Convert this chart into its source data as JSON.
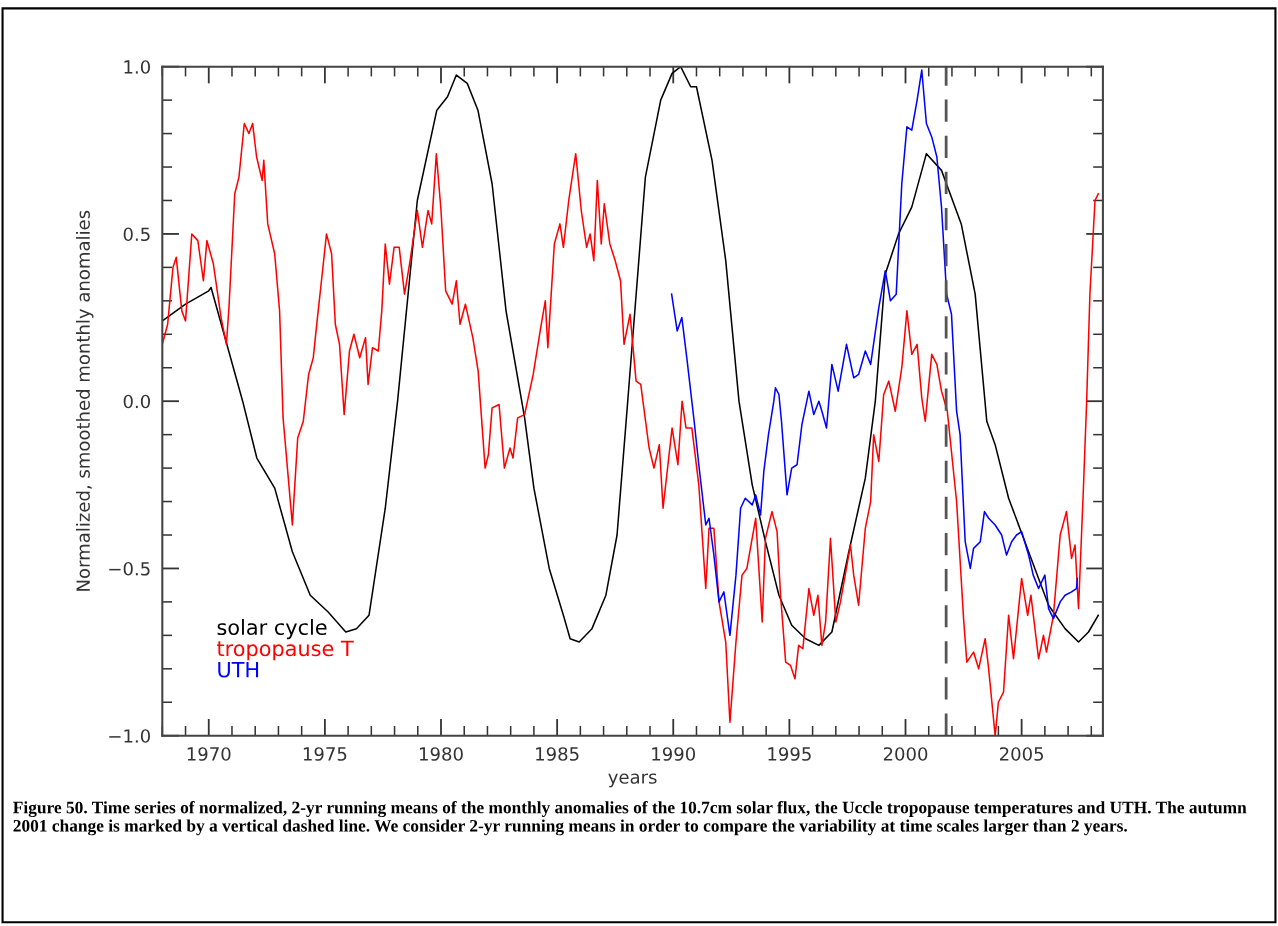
{
  "chart_data": {
    "type": "line",
    "xlabel": "years",
    "ylabel": "Normalized, smoothed monthly anomalies",
    "xlim": [
      1968,
      2008.5
    ],
    "ylim": [
      -1.0,
      1.0
    ],
    "xticks": [
      1970,
      1975,
      1980,
      1985,
      1990,
      1995,
      2000,
      2005
    ],
    "yticks": [
      {
        "value": -1.0,
        "label": "−1.0"
      },
      {
        "value": -0.5,
        "label": "−0.5"
      },
      {
        "value": 0.0,
        "label": "0.0"
      },
      {
        "value": 0.5,
        "label": "0.5"
      },
      {
        "value": 1.0,
        "label": "1.0"
      }
    ],
    "grid": false,
    "legend": "bottom left",
    "marker": "none",
    "line_style": "solid",
    "series": [
      {
        "name": "solar cycle",
        "color": "#000000",
        "x": [
          1968.0,
          1969.0,
          1970.0,
          1970.1,
          1971.46,
          1972.07,
          1972.84,
          1973.6,
          1974.37,
          1975.14,
          1975.9,
          1976.36,
          1976.9,
          1977.6,
          1978.13,
          1978.98,
          1979.82,
          1980.28,
          1980.66,
          1981.13,
          1981.59,
          1982.2,
          1982.8,
          1983.6,
          1984.0,
          1984.66,
          1985.27,
          1985.56,
          1985.95,
          1986.5,
          1987.1,
          1987.58,
          1988.04,
          1988.8,
          1989.46,
          1989.95,
          1990.32,
          1990.75,
          1991.0,
          1991.67,
          1992.26,
          1992.83,
          1993.4,
          1993.97,
          1994.55,
          1995.1,
          1995.7,
          1996.27,
          1996.83,
          1997.56,
          1998.27,
          1998.7,
          1999.13,
          1999.7,
          2000.27,
          2000.9,
          2001.55,
          2002.4,
          2003.0,
          2003.5,
          2003.86,
          2004.44,
          2005.3,
          2006.16,
          2006.87,
          2007.45,
          2007.88,
          2008.3
        ],
        "values": [
          0.24,
          0.29,
          0.33,
          0.34,
          0.0,
          -0.17,
          -0.26,
          -0.45,
          -0.58,
          -0.63,
          -0.69,
          -0.68,
          -0.64,
          -0.32,
          0.0,
          0.6,
          0.87,
          0.91,
          0.975,
          0.95,
          0.87,
          0.65,
          0.27,
          -0.05,
          -0.26,
          -0.5,
          -0.64,
          -0.71,
          -0.72,
          -0.68,
          -0.58,
          -0.4,
          0.0,
          0.67,
          0.9,
          0.98,
          1.0,
          0.94,
          0.94,
          0.72,
          0.42,
          0.0,
          -0.25,
          -0.42,
          -0.58,
          -0.67,
          -0.71,
          -0.73,
          -0.69,
          -0.45,
          -0.23,
          0.0,
          0.38,
          0.5,
          0.58,
          0.74,
          0.69,
          0.53,
          0.32,
          -0.06,
          -0.13,
          -0.29,
          -0.45,
          -0.61,
          -0.68,
          -0.72,
          -0.69,
          -0.64
        ]
      },
      {
        "name": "tropopause T",
        "color": "#ff0000",
        "x": [
          1968.0,
          1968.23,
          1968.46,
          1968.6,
          1968.84,
          1969.0,
          1969.27,
          1969.53,
          1969.77,
          1969.92,
          1970.2,
          1970.53,
          1970.76,
          1970.87,
          1971.12,
          1971.3,
          1971.53,
          1971.73,
          1971.89,
          1972.06,
          1972.3,
          1972.37,
          1972.54,
          1972.84,
          1973.05,
          1973.2,
          1973.6,
          1973.83,
          1974.07,
          1974.3,
          1974.5,
          1974.68,
          1974.9,
          1975.07,
          1975.29,
          1975.45,
          1975.63,
          1975.83,
          1976.06,
          1976.25,
          1976.5,
          1976.75,
          1976.86,
          1977.05,
          1977.3,
          1977.45,
          1977.6,
          1977.78,
          1977.98,
          1978.2,
          1978.43,
          1978.67,
          1978.98,
          1979.2,
          1979.44,
          1979.6,
          1979.8,
          1980.0,
          1980.2,
          1980.48,
          1980.66,
          1980.82,
          1981.05,
          1981.37,
          1981.6,
          1981.9,
          1982.04,
          1982.2,
          1982.5,
          1982.73,
          1982.97,
          1983.1,
          1983.3,
          1983.6,
          1983.97,
          1984.27,
          1984.49,
          1984.6,
          1984.88,
          1985.12,
          1985.27,
          1985.5,
          1985.8,
          1986.04,
          1986.27,
          1986.42,
          1986.58,
          1986.73,
          1986.9,
          1987.03,
          1987.27,
          1987.5,
          1987.73,
          1987.88,
          1988.14,
          1988.4,
          1988.6,
          1988.96,
          1989.17,
          1989.4,
          1989.56,
          1989.95,
          1990.2,
          1990.38,
          1990.55,
          1990.8,
          1991.1,
          1991.4,
          1991.54,
          1991.75,
          1991.97,
          1992.26,
          1992.44,
          1992.7,
          1992.96,
          1993.17,
          1993.55,
          1993.83,
          1993.97,
          1994.25,
          1994.47,
          1994.62,
          1994.84,
          1995.05,
          1995.24,
          1995.4,
          1995.58,
          1995.84,
          1996.05,
          1996.23,
          1996.4,
          1996.56,
          1996.77,
          1997.0,
          1997.2,
          1997.63,
          1997.77,
          1997.98,
          1998.27,
          1998.5,
          1998.63,
          1998.85,
          1999.06,
          1999.28,
          1999.56,
          1999.84,
          2000.06,
          2000.27,
          2000.5,
          2000.7,
          2000.85,
          2001.13,
          2001.35,
          2001.55,
          2001.8,
          2002.2,
          2002.5,
          2002.64,
          2002.93,
          2003.15,
          2003.43,
          2003.58,
          2003.86,
          2004.0,
          2004.22,
          2004.44,
          2004.65,
          2005.0,
          2005.26,
          2005.4,
          2005.73,
          2005.94,
          2006.07,
          2006.37,
          2006.66,
          2006.93,
          2007.15,
          2007.3,
          2007.45,
          2007.66,
          2007.8,
          2007.94,
          2008.16,
          2008.3
        ],
        "values": [
          0.17,
          0.23,
          0.4,
          0.43,
          0.27,
          0.24,
          0.5,
          0.48,
          0.36,
          0.48,
          0.41,
          0.25,
          0.17,
          0.28,
          0.62,
          0.67,
          0.83,
          0.8,
          0.83,
          0.73,
          0.66,
          0.72,
          0.53,
          0.44,
          0.27,
          -0.05,
          -0.37,
          -0.11,
          -0.06,
          0.08,
          0.13,
          0.25,
          0.39,
          0.5,
          0.44,
          0.23,
          0.17,
          -0.04,
          0.15,
          0.2,
          0.13,
          0.19,
          0.05,
          0.16,
          0.15,
          0.27,
          0.47,
          0.35,
          0.46,
          0.46,
          0.32,
          0.42,
          0.57,
          0.46,
          0.57,
          0.53,
          0.74,
          0.57,
          0.33,
          0.29,
          0.36,
          0.23,
          0.29,
          0.19,
          0.09,
          -0.2,
          -0.16,
          -0.02,
          -0.01,
          -0.2,
          -0.14,
          -0.17,
          -0.05,
          -0.04,
          0.08,
          0.21,
          0.3,
          0.16,
          0.47,
          0.53,
          0.46,
          0.6,
          0.74,
          0.57,
          0.46,
          0.5,
          0.42,
          0.66,
          0.47,
          0.59,
          0.47,
          0.42,
          0.36,
          0.17,
          0.26,
          0.06,
          0.05,
          -0.14,
          -0.2,
          -0.13,
          -0.32,
          -0.08,
          -0.19,
          0.0,
          -0.08,
          -0.08,
          -0.25,
          -0.56,
          -0.38,
          -0.38,
          -0.6,
          -0.72,
          -0.96,
          -0.72,
          -0.52,
          -0.5,
          -0.35,
          -0.66,
          -0.41,
          -0.33,
          -0.39,
          -0.58,
          -0.78,
          -0.79,
          -0.83,
          -0.73,
          -0.74,
          -0.56,
          -0.64,
          -0.58,
          -0.73,
          -0.66,
          -0.41,
          -0.66,
          -0.6,
          -0.43,
          -0.52,
          -0.61,
          -0.38,
          -0.3,
          -0.1,
          -0.18,
          0.02,
          0.06,
          -0.03,
          0.1,
          0.27,
          0.14,
          0.17,
          0.01,
          -0.06,
          0.14,
          0.11,
          0.03,
          -0.03,
          -0.3,
          -0.65,
          -0.78,
          -0.75,
          -0.8,
          -0.71,
          -0.8,
          -1.0,
          -0.9,
          -0.87,
          -0.64,
          -0.77,
          -0.53,
          -0.64,
          -0.58,
          -0.77,
          -0.7,
          -0.75,
          -0.64,
          -0.4,
          -0.33,
          -0.47,
          -0.43,
          -0.62,
          -0.26,
          0.0,
          0.32,
          0.6,
          0.62
        ]
      },
      {
        "name": "UTH",
        "color": "#0000ff",
        "x": [
          1989.93,
          1990.17,
          1990.37,
          1990.6,
          1990.9,
          1991.1,
          1991.4,
          1991.54,
          1991.75,
          1991.97,
          1992.18,
          1992.44,
          1992.7,
          1992.9,
          1993.1,
          1993.4,
          1993.55,
          1993.76,
          1993.9,
          1994.1,
          1994.33,
          1994.4,
          1994.55,
          1994.66,
          1994.9,
          1995.1,
          1995.33,
          1995.54,
          1995.75,
          1995.84,
          1996.05,
          1996.27,
          1996.4,
          1996.6,
          1996.83,
          1997.1,
          1997.46,
          1997.77,
          1997.98,
          1998.27,
          1998.5,
          1998.85,
          1999.13,
          1999.35,
          1999.6,
          1999.84,
          2000.06,
          2000.27,
          2000.5,
          2000.7,
          2000.9,
          2001.13,
          2001.35,
          2001.55,
          2001.77,
          2001.98,
          2002.2,
          2002.35,
          2002.57,
          2002.79,
          2002.93,
          2003.22,
          2003.4,
          2003.58,
          2003.86,
          2004.14,
          2004.35,
          2004.57,
          2004.78,
          2005.0,
          2005.3,
          2005.5,
          2005.73,
          2006.0,
          2006.16,
          2006.37,
          2006.66,
          2006.87,
          2007.15,
          2007.36,
          2007.4
        ],
        "values": [
          0.32,
          0.21,
          0.25,
          0.12,
          -0.06,
          -0.19,
          -0.37,
          -0.35,
          -0.46,
          -0.6,
          -0.57,
          -0.7,
          -0.52,
          -0.32,
          -0.29,
          -0.31,
          -0.28,
          -0.34,
          -0.21,
          -0.1,
          0.0,
          0.04,
          0.02,
          -0.06,
          -0.28,
          -0.2,
          -0.19,
          -0.07,
          0.0,
          0.03,
          -0.04,
          0.0,
          -0.03,
          -0.08,
          0.11,
          0.03,
          0.17,
          0.07,
          0.08,
          0.15,
          0.11,
          0.28,
          0.39,
          0.3,
          0.32,
          0.65,
          0.82,
          0.81,
          0.9,
          0.99,
          0.83,
          0.79,
          0.73,
          0.58,
          0.32,
          0.26,
          -0.03,
          -0.1,
          -0.42,
          -0.5,
          -0.44,
          -0.42,
          -0.33,
          -0.35,
          -0.37,
          -0.4,
          -0.46,
          -0.42,
          -0.4,
          -0.39,
          -0.46,
          -0.52,
          -0.56,
          -0.52,
          -0.62,
          -0.65,
          -0.6,
          -0.58,
          -0.57,
          -0.56,
          -0.53
        ]
      }
    ],
    "ref_lines": [
      {
        "axis": "x",
        "value": 2001.75,
        "color": "#555555",
        "line_style": "dashed"
      }
    ],
    "annotations": [
      "Figure 50. Time series of normalized, 2-yr running means of the monthly anomalies of the 10.7cm solar flux, the Uccle tropopause temperatures and UTH. The autumn 2001 change is marked by a vertical dashed line. We consider 2-yr running means in order to compare the variability at time scales larger than 2 years."
    ]
  }
}
